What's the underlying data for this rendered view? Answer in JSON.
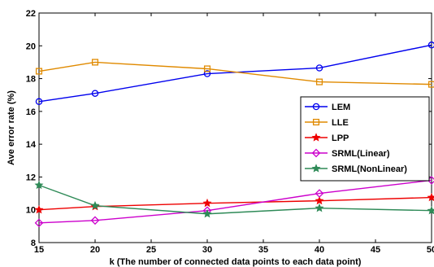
{
  "chart_data": {
    "type": "line",
    "title": "",
    "xlabel": "k (The number of connected data points to each data point)",
    "ylabel": "Ave error rate (%)",
    "xlim": [
      15,
      50
    ],
    "ylim": [
      8,
      22
    ],
    "xticks": [
      15,
      20,
      25,
      30,
      35,
      40,
      45,
      50
    ],
    "yticks": [
      8,
      10,
      12,
      14,
      16,
      18,
      20,
      22
    ],
    "x": [
      15,
      20,
      30,
      40,
      50
    ],
    "legend_position": "right",
    "grid": false,
    "series": [
      {
        "name": "LEM",
        "color": "#0000ee",
        "marker": "circle",
        "values": [
          16.6,
          17.1,
          18.3,
          18.65,
          20.05
        ]
      },
      {
        "name": "LLE",
        "color": "#e08a00",
        "marker": "square",
        "values": [
          18.45,
          19.0,
          18.6,
          17.8,
          17.65
        ]
      },
      {
        "name": "LPP",
        "color": "#ee0000",
        "marker": "star",
        "values": [
          10.0,
          10.2,
          10.4,
          10.55,
          10.75
        ]
      },
      {
        "name": "SRML(Linear)",
        "color": "#cc00cc",
        "marker": "diamond",
        "values": [
          9.2,
          9.35,
          9.95,
          11.0,
          11.8
        ]
      },
      {
        "name": "SRML(NonLinear)",
        "color": "#2e8a57",
        "marker": "star",
        "values": [
          11.5,
          10.25,
          9.75,
          10.1,
          9.95
        ]
      }
    ]
  }
}
